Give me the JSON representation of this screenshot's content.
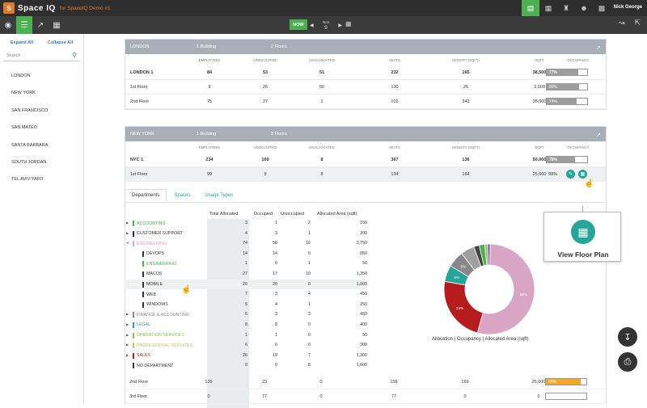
{
  "topbar": {
    "logo_letter": "S",
    "app_name": "Space IQ",
    "org": "for SpaceIQ Demo #1",
    "user": "Nick George",
    "icons": [
      "dashboard-icon",
      "building-icon",
      "people-icon",
      "person-icon",
      "bar-chart-icon"
    ]
  },
  "toolbar": {
    "now_label": "NOW",
    "date_month": "Nov",
    "date_day": "9",
    "prev_glyph": "◀",
    "next_glyph": "▶"
  },
  "sidebar": {
    "expand_all": "Expand All",
    "collapse_all": "Collapse All",
    "search_placeholder": "Search",
    "items": [
      "LONDON",
      "NEW YORK",
      "SAN FRANCISCO",
      "SAN MATEO",
      "SANTA BARBARA",
      "SOUTH JORDAN",
      "TEL AVIV-YAFO"
    ]
  },
  "columns": [
    "EMPLOYEES",
    "UNOCCUPIED",
    "UNALLOCATED",
    "SEATS",
    "DENSITY (SQFT)",
    "SQFT",
    "OCCUPANCY"
  ],
  "london": {
    "name": "LONDON",
    "buildings": "1 Building",
    "floors": "2 Floors",
    "rows": [
      {
        "name": "LONDON 1",
        "vals": [
          "84",
          "53",
          "51",
          "232",
          "165",
          "38,500"
        ],
        "occ": "77%",
        "occ_val": 0.77,
        "bold": true
      },
      {
        "name": "1st Floor",
        "vals": [
          "9",
          "26",
          "50",
          "130",
          "26",
          "3,500"
        ],
        "occ": "80%",
        "occ_val": 0.8
      },
      {
        "name": "2nd Floor",
        "vals": [
          "75",
          "27",
          "1",
          "102",
          "343",
          "35,000"
        ],
        "occ": "74%",
        "occ_val": 0.74
      }
    ]
  },
  "newyork": {
    "name": "NEW YORK",
    "buildings": "1 Building",
    "floors": "3 Floors",
    "rows": [
      {
        "name": "NYC 1",
        "vals": [
          "234",
          "169",
          "8",
          "367",
          "136",
          "50,000"
        ],
        "occ": "70%",
        "occ_val": 0.7,
        "bold": true
      },
      {
        "name": "1st Floor",
        "vals": [
          "99",
          "9",
          "8",
          "134",
          "184",
          "25,000"
        ],
        "occ": "93%"
      }
    ],
    "bottom_rows": [
      {
        "name": "2nd Floor",
        "vals": [
          "135",
          "23",
          "0",
          "158",
          "169",
          "25,000"
        ],
        "occ": "85%",
        "occ_val": 0.85,
        "color": "#f5a623"
      },
      {
        "name": "3rd Floor",
        "vals": [
          "0",
          "77",
          "0",
          "77",
          "0",
          "0"
        ],
        "occ": "0%",
        "occ_val": 0.0
      }
    ]
  },
  "tabs": [
    "Departments",
    "Spaces",
    "Usage Types"
  ],
  "dept_headers": [
    "Total Allocated",
    "Occupied",
    "Unoccupied",
    "Allocated Area (sqft)"
  ],
  "departments": [
    {
      "name": "ACCOUNTING",
      "color": "#4caf50",
      "vals": [
        "3",
        "1",
        "2",
        "150"
      ],
      "caret": true,
      "indent": 0
    },
    {
      "name": "CUSTOMER SUPPORT",
      "color": "#333333",
      "vals": [
        "4",
        "3",
        "1",
        "200"
      ],
      "caret": true,
      "indent": 0
    },
    {
      "name": "ENGINEERING",
      "color": "#d8a5c4",
      "vals": [
        "74",
        "58",
        "16",
        "3,750"
      ],
      "caret": true,
      "indent": 0,
      "open": true
    },
    {
      "name": "DEVOPS",
      "color": "#333333",
      "vals": [
        "14",
        "14",
        "0",
        "850"
      ],
      "indent": 1
    },
    {
      "name": "ENGINEERING",
      "color": "#4caf50",
      "vals": [
        "1",
        "0",
        "1",
        "50"
      ],
      "indent": 1
    },
    {
      "name": "MACOS",
      "color": "#333333",
      "vals": [
        "27",
        "17",
        "10",
        "1,350"
      ],
      "indent": 1
    },
    {
      "name": "MOBILE",
      "color": "#333333",
      "vals": [
        "20",
        "20",
        "0",
        "1,000"
      ],
      "indent": 1,
      "hl": true
    },
    {
      "name": "WEB",
      "color": "#333333",
      "vals": [
        "7",
        "3",
        "4",
        "450"
      ],
      "indent": 1
    },
    {
      "name": "WINDOWS",
      "color": "#333333",
      "vals": [
        "5",
        "4",
        "1",
        "250"
      ],
      "indent": 1
    },
    {
      "name": "FINANCE & ACCOUNTING",
      "color": "#888888",
      "vals": [
        "6",
        "3",
        "3",
        "450"
      ],
      "caret": true,
      "indent": 0
    },
    {
      "name": "LEGAL",
      "color": "#26a69a",
      "vals": [
        "8",
        "8",
        "0",
        "400"
      ],
      "caret": true,
      "indent": 0
    },
    {
      "name": "OPERATION SERVICES",
      "color": "#8bc34a",
      "vals": [
        "1",
        "1",
        "0",
        "50"
      ],
      "caret": true,
      "indent": 0
    },
    {
      "name": "PROFESSIONAL SERVICES",
      "color": "#c5c56a",
      "vals": [
        "6",
        "6",
        "0",
        "300"
      ],
      "caret": true,
      "indent": 0
    },
    {
      "name": "SALES",
      "color": "#b71c1c",
      "vals": [
        "26",
        "19",
        "7",
        "1,300"
      ],
      "caret": true,
      "indent": 0
    },
    {
      "name": "NO DEPARTMENT",
      "color": "#333333",
      "vals": [
        "0",
        "0",
        "8",
        "1,600"
      ],
      "indent": 0
    }
  ],
  "chart_data": {
    "type": "pie",
    "title": "Allocation | Occupancy | Allocated Area (sqft)",
    "labels": [
      "ENGINEERING",
      "SALES",
      "LEGAL",
      "FINANCE & ACCOUNTING",
      "PROFESSIONAL SERVICES",
      "CUSTOMER SUPPORT",
      "ACCOUNTING",
      "OPERATION SERVICES",
      "NO DEPARTMENT"
    ],
    "values": [
      55,
      24,
      6,
      6,
      5,
      2,
      2,
      1,
      1
    ],
    "colors": [
      "#d8a5c4",
      "#b71c1c",
      "#26a69a",
      "#888888",
      "#a0a0a0",
      "#444444",
      "#4caf50",
      "#8bc34a",
      "#7e57c2"
    ],
    "slice_labels": [
      "55%",
      "24%",
      "6%",
      "6%",
      "",
      "",
      "",
      "",
      ""
    ]
  },
  "popup": {
    "label": "View Floor Plan"
  }
}
